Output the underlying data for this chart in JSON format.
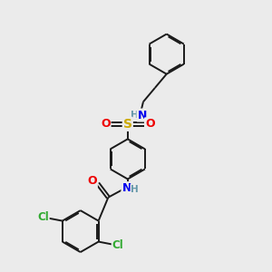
{
  "bg_color": "#ebebeb",
  "bond_color": "#1a1a1a",
  "bond_width": 1.4,
  "atom_colors": {
    "N": "#0000ee",
    "O": "#ee0000",
    "S": "#ccaa00",
    "Cl": "#33aa33",
    "H": "#6699aa",
    "C": "#1a1a1a"
  },
  "font_size": 8.5
}
